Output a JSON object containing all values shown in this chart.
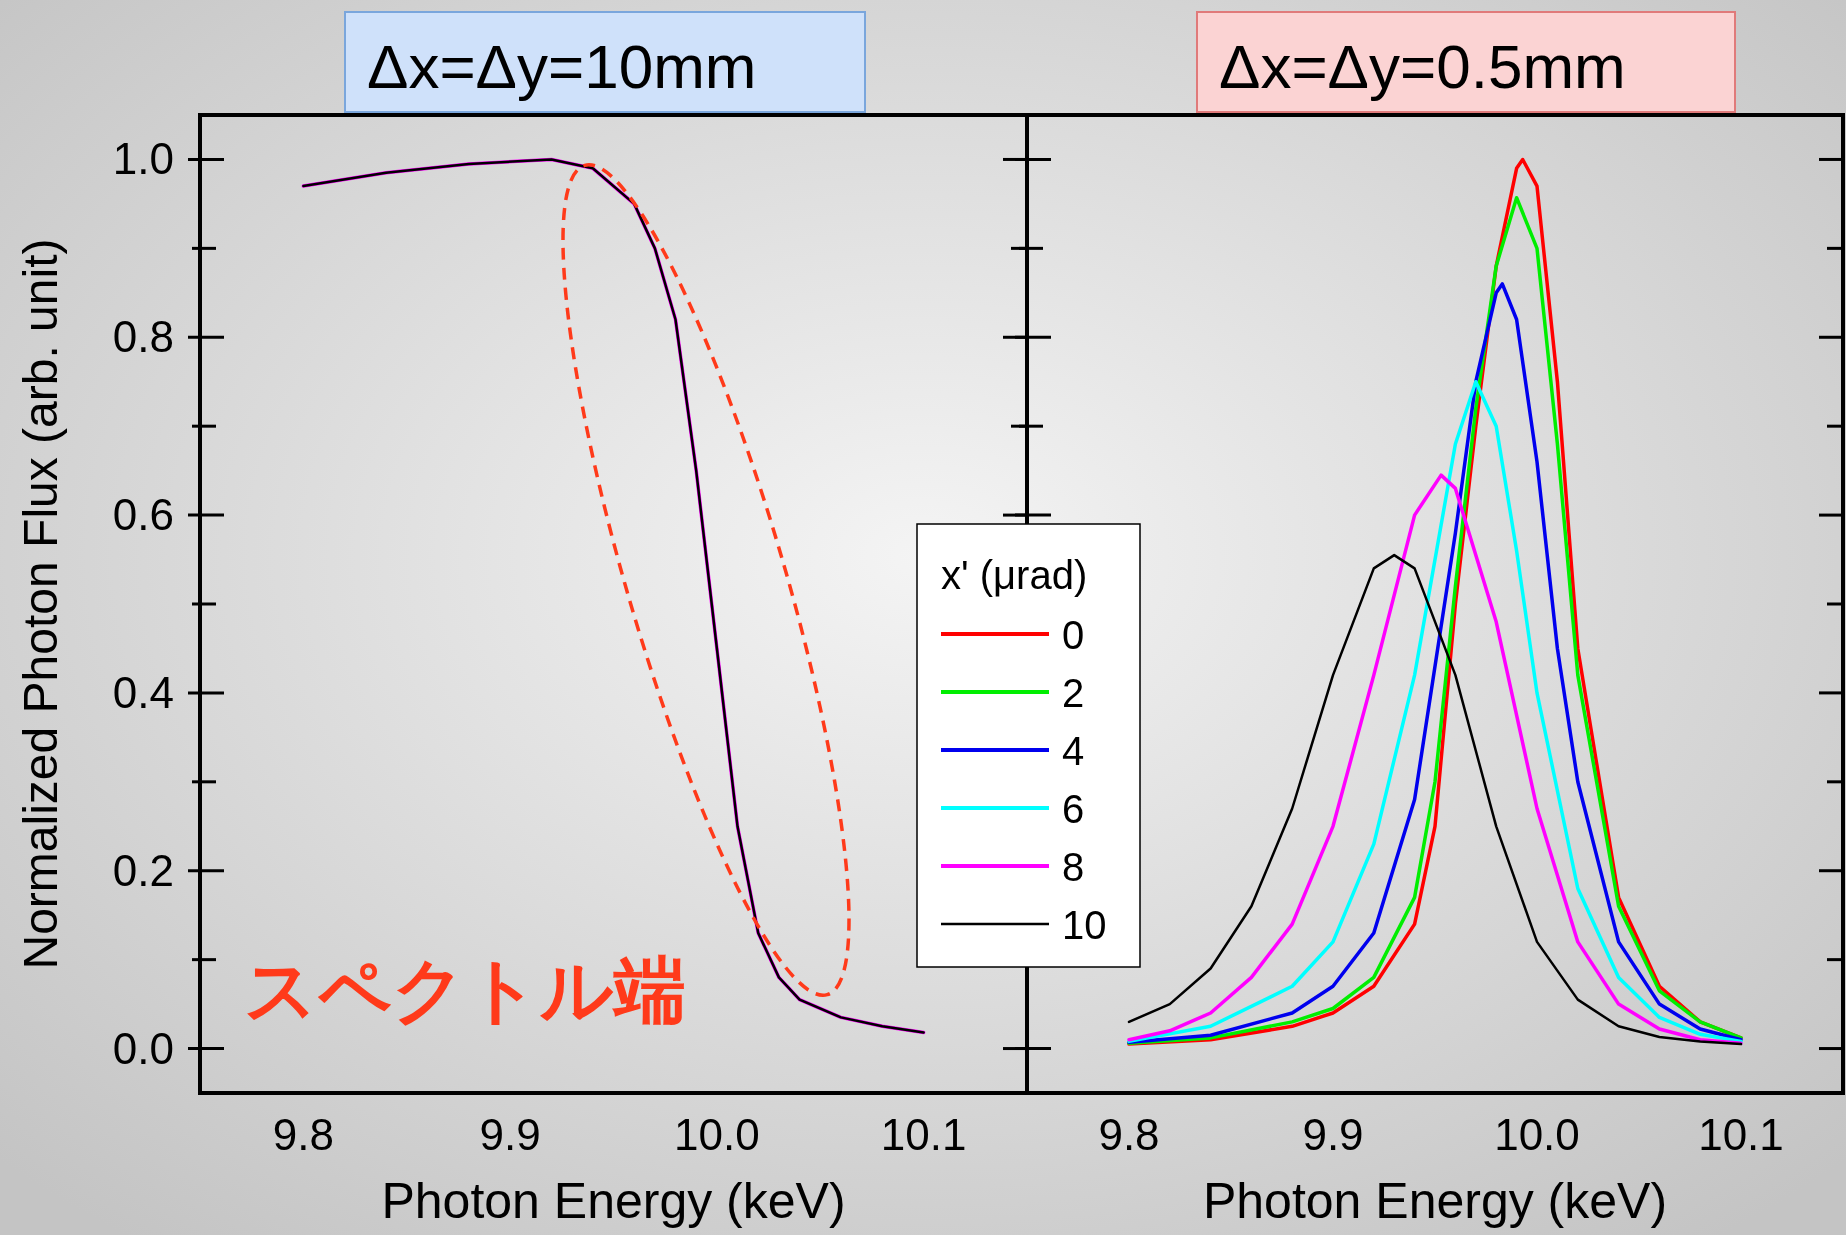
{
  "chart_data": [
    {
      "type": "line",
      "title": "Δx=Δy=10mm",
      "xlabel": "Photon Energy (keV)",
      "ylabel": "Normalized Photon Flux (arb. unit)",
      "xlim": [
        9.75,
        10.15
      ],
      "ylim": [
        -0.05,
        1.05
      ],
      "xticks": [
        9.8,
        9.9,
        {
          "value": 10.0,
          "label": "10.0"
        },
        10.1
      ],
      "yticks": [
        {
          "value": 0,
          "label": "0.0"
        },
        {
          "value": 0.1,
          "label": null
        },
        0.2,
        {
          "value": 0.3,
          "label": null
        },
        0.4,
        {
          "value": 0.5,
          "label": null
        },
        0.6,
        {
          "value": 0.7,
          "label": null
        },
        0.8,
        {
          "value": 0.9,
          "label": null
        },
        {
          "value": 1,
          "label": "1.0"
        }
      ],
      "annotations": [
        "スペクトル端"
      ],
      "series": [
        {
          "color": "#ff00ff",
          "x": [
            9.8,
            9.84,
            9.88,
            9.92,
            9.94,
            9.96,
            9.97,
            9.98,
            9.99,
            10.0,
            10.01,
            10.02,
            10.03,
            10.04,
            10.06,
            10.08,
            10.1
          ],
          "values": [
            0.97,
            0.985,
            0.995,
            1.0,
            0.99,
            0.95,
            0.9,
            0.82,
            0.65,
            0.45,
            0.25,
            0.13,
            0.08,
            0.055,
            0.035,
            0.025,
            0.018
          ]
        },
        {
          "color": "#000000",
          "x": [
            9.8,
            9.84,
            9.88,
            9.92,
            9.94,
            9.96,
            9.97,
            9.98,
            9.99,
            10.0,
            10.01,
            10.02,
            10.03,
            10.04,
            10.06,
            10.08,
            10.1
          ],
          "values": [
            0.97,
            0.985,
            0.995,
            1.0,
            0.99,
            0.95,
            0.9,
            0.82,
            0.65,
            0.45,
            0.25,
            0.13,
            0.08,
            0.055,
            0.035,
            0.025,
            0.018
          ]
        }
      ]
    },
    {
      "type": "line",
      "title": "Δx=Δy=0.5mm",
      "xlabel": "Photon Energy (keV)",
      "legend_title": "x' (μrad)",
      "legend": "left",
      "tick_labels": "x",
      "xlim": [
        9.75,
        10.15
      ],
      "ylim": [
        -0.05,
        1.05
      ],
      "xticks": [
        9.8,
        9.9,
        {
          "value": 10.0,
          "label": "10.0"
        },
        10.1
      ],
      "yticks": [
        0,
        0.1,
        0.2,
        0.3,
        0.4,
        0.5,
        0.6,
        0.7,
        0.8,
        0.9,
        1
      ],
      "series": [
        {
          "name": "0",
          "color": "#ff0000",
          "x": [
            9.8,
            9.84,
            9.88,
            9.9,
            9.92,
            9.94,
            9.95,
            9.96,
            9.97,
            9.98,
            9.99,
            9.993,
            10.0,
            10.01,
            10.02,
            10.04,
            10.06,
            10.08,
            10.1
          ],
          "values": [
            0.005,
            0.01,
            0.025,
            0.04,
            0.07,
            0.14,
            0.25,
            0.5,
            0.7,
            0.88,
            0.99,
            1.0,
            0.97,
            0.75,
            0.45,
            0.17,
            0.07,
            0.03,
            0.012
          ]
        },
        {
          "name": "2",
          "color": "#00ee00",
          "x": [
            9.8,
            9.84,
            9.88,
            9.9,
            9.92,
            9.94,
            9.95,
            9.96,
            9.97,
            9.98,
            9.99,
            10.0,
            10.01,
            10.02,
            10.04,
            10.06,
            10.08,
            10.1
          ],
          "values": [
            0.006,
            0.012,
            0.03,
            0.045,
            0.08,
            0.17,
            0.3,
            0.52,
            0.72,
            0.88,
            0.957,
            0.9,
            0.68,
            0.42,
            0.16,
            0.065,
            0.03,
            0.012
          ]
        },
        {
          "name": "4",
          "color": "#0000ee",
          "x": [
            9.8,
            9.84,
            9.88,
            9.9,
            9.92,
            9.94,
            9.96,
            9.97,
            9.98,
            9.983,
            9.99,
            10.0,
            10.01,
            10.02,
            10.04,
            10.06,
            10.08,
            10.1
          ],
          "values": [
            0.007,
            0.015,
            0.04,
            0.07,
            0.13,
            0.28,
            0.58,
            0.75,
            0.85,
            0.86,
            0.82,
            0.66,
            0.45,
            0.3,
            0.12,
            0.05,
            0.022,
            0.01
          ]
        },
        {
          "name": "6",
          "color": "#00ffff",
          "x": [
            9.8,
            9.84,
            9.88,
            9.9,
            9.92,
            9.94,
            9.96,
            9.97,
            9.98,
            9.99,
            10.0,
            10.02,
            10.04,
            10.06,
            10.08,
            10.1
          ],
          "values": [
            0.008,
            0.025,
            0.07,
            0.12,
            0.23,
            0.42,
            0.68,
            0.75,
            0.7,
            0.56,
            0.4,
            0.18,
            0.08,
            0.035,
            0.016,
            0.008
          ]
        },
        {
          "name": "8",
          "color": "#ff00ff",
          "x": [
            9.8,
            9.82,
            9.84,
            9.86,
            9.88,
            9.9,
            9.92,
            9.94,
            9.953,
            9.96,
            9.98,
            10.0,
            10.02,
            10.04,
            10.06,
            10.08,
            10.1
          ],
          "values": [
            0.01,
            0.02,
            0.04,
            0.08,
            0.14,
            0.25,
            0.42,
            0.6,
            0.645,
            0.63,
            0.48,
            0.27,
            0.12,
            0.05,
            0.022,
            0.01,
            0.006
          ]
        },
        {
          "name": "10",
          "color": "#000000",
          "x": [
            9.8,
            9.82,
            9.84,
            9.86,
            9.88,
            9.9,
            9.92,
            9.93,
            9.94,
            9.96,
            9.98,
            10.0,
            10.02,
            10.04,
            10.06,
            10.08,
            10.1
          ],
          "values": [
            0.03,
            0.05,
            0.09,
            0.16,
            0.27,
            0.42,
            0.54,
            0.555,
            0.54,
            0.42,
            0.25,
            0.12,
            0.055,
            0.025,
            0.013,
            0.008,
            0.005
          ]
        }
      ]
    }
  ]
}
